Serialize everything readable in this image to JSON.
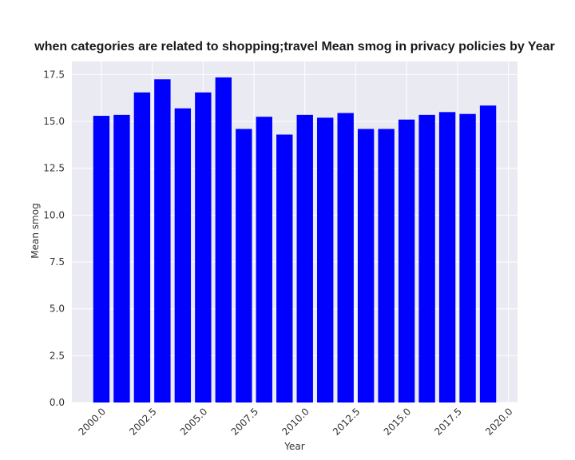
{
  "chart_data": {
    "type": "bar",
    "title": "when categories are related to shopping;travel Mean smog in privacy policies by Year",
    "xlabel": "Year",
    "ylabel": "Mean smog",
    "x": [
      2000,
      2001,
      2002,
      2003,
      2004,
      2005,
      2006,
      2007,
      2008,
      2009,
      2010,
      2011,
      2012,
      2013,
      2014,
      2015,
      2016,
      2017,
      2018,
      2019
    ],
    "values": [
      15.3,
      15.35,
      16.55,
      17.25,
      15.7,
      16.55,
      17.35,
      14.6,
      15.25,
      14.3,
      15.35,
      15.2,
      15.45,
      14.6,
      14.6,
      15.1,
      15.35,
      15.5,
      15.4,
      15.85
    ],
    "xlim": [
      1998.55,
      2020.45
    ],
    "ylim": [
      0,
      18.2
    ],
    "xticks": [
      2000.0,
      2002.5,
      2005.0,
      2007.5,
      2010.0,
      2012.5,
      2015.0,
      2017.5,
      2020.0
    ],
    "xtick_labels": [
      "2000.0",
      "2002.5",
      "2005.0",
      "2007.5",
      "2010.0",
      "2012.5",
      "2015.0",
      "2017.5",
      "2020.0"
    ],
    "yticks": [
      0,
      2.5,
      5,
      7.5,
      10,
      12.5,
      15,
      17.5
    ],
    "ytick_labels": [
      "0.0",
      "2.5",
      "5.0",
      "7.5",
      "10.0",
      "12.5",
      "15.0",
      "17.5"
    ],
    "grid": true,
    "bar_color": "#0000ff",
    "background_color": "#eaeaf2",
    "grid_color": "#ffffff"
  }
}
